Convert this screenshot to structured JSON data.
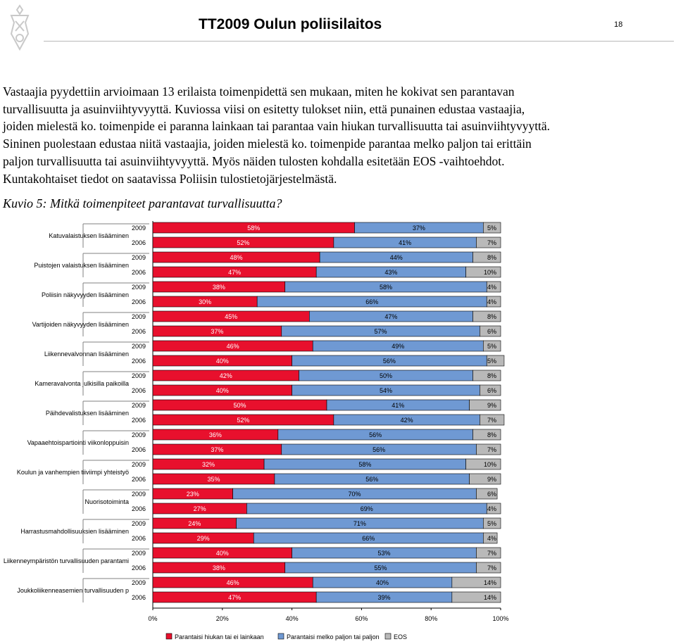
{
  "header": {
    "title": "TT2009 Oulun poliisilaitos",
    "page_number": "18"
  },
  "intro": {
    "lines": [
      "Vastaajia pyydettiin arvioimaan 13 erilaista toimenpidettä sen mukaan, miten he kokivat sen parantavan",
      "turvallisuutta ja asuinviihtyvyyttä. Kuviossa viisi on esitetty tulokset niin, että punainen edustaa vastaajia,",
      "joiden mielestä ko. toimenpide ei paranna lainkaan tai parantaa vain hiukan turvallisuutta tai asuinviihtyvyyttä.",
      "Sininen puolestaan edustaa niitä vastaajia, joiden mielestä ko. toimenpide parantaa melko paljon tai erittäin",
      "paljon turvallisuutta tai asuinviihtyvyyttä. Myös näiden tulosten kohdalla esitetään EOS -vaihtoehdot.",
      "Kuntakohtaiset tiedot on saatavissa Poliisin tulostietojärjestelmästä."
    ]
  },
  "figure_caption": "Kuvio 5: Mitkä toimenpiteet parantavat turvallisuutta?",
  "colors": {
    "red": "#e8102d",
    "blue": "#6f99d3",
    "gray": "#b9b9b9"
  },
  "chart_data": {
    "type": "bar",
    "orientation": "horizontal",
    "stacked": true,
    "xlim": [
      0,
      100
    ],
    "x_ticks": [
      "0%",
      "20%",
      "40%",
      "60%",
      "80%",
      "100%"
    ],
    "legend": [
      "Parantaisi hiukan tai ei lainkaan",
      "Parantaisi melko paljon tai paljon",
      "EOS"
    ],
    "items": [
      {
        "label": "Katuvalaistuksen lisääminen",
        "rows": [
          {
            "year": "2009",
            "values": [
              58,
              37,
              5
            ]
          },
          {
            "year": "2006",
            "values": [
              52,
              41,
              7
            ]
          }
        ]
      },
      {
        "label": "Puistojen valaistuksen lisääminen",
        "rows": [
          {
            "year": "2009",
            "values": [
              48,
              44,
              8
            ]
          },
          {
            "year": "2006",
            "values": [
              47,
              43,
              10
            ]
          }
        ]
      },
      {
        "label": "Poliisin näkyvyyden lisääminen",
        "rows": [
          {
            "year": "2009",
            "values": [
              38,
              58,
              4
            ]
          },
          {
            "year": "2006",
            "values": [
              30,
              66,
              4
            ]
          }
        ]
      },
      {
        "label": "Vartijoiden näkyvyyden lisääminen",
        "rows": [
          {
            "year": "2009",
            "values": [
              45,
              47,
              8
            ]
          },
          {
            "year": "2006",
            "values": [
              37,
              57,
              6
            ]
          }
        ]
      },
      {
        "label": "Liikennevalvonnan lisääminen",
        "rows": [
          {
            "year": "2009",
            "values": [
              46,
              49,
              5
            ]
          },
          {
            "year": "2006",
            "values": [
              40,
              56,
              5
            ]
          }
        ]
      },
      {
        "label": "Kameravalvonta julkisilla paikoilla",
        "rows": [
          {
            "year": "2009",
            "values": [
              42,
              50,
              8
            ]
          },
          {
            "year": "2006",
            "values": [
              40,
              54,
              6
            ]
          }
        ]
      },
      {
        "label": "Päihdevalistuksen lisääminen",
        "rows": [
          {
            "year": "2009",
            "values": [
              50,
              41,
              9
            ]
          },
          {
            "year": "2006",
            "values": [
              52,
              42,
              7
            ]
          }
        ]
      },
      {
        "label": "Vapaaehtoispartiointi viikonloppuisin",
        "rows": [
          {
            "year": "2009",
            "values": [
              36,
              56,
              8
            ]
          },
          {
            "year": "2006",
            "values": [
              37,
              56,
              7
            ]
          }
        ]
      },
      {
        "label": "Koulun ja vanhempien tiiviimpi yhteistyö",
        "rows": [
          {
            "year": "2009",
            "values": [
              32,
              58,
              10
            ]
          },
          {
            "year": "2006",
            "values": [
              35,
              56,
              9
            ]
          }
        ]
      },
      {
        "label": "Nuorisotoiminta",
        "rows": [
          {
            "year": "2009",
            "values": [
              23,
              70,
              6
            ]
          },
          {
            "year": "2006",
            "values": [
              27,
              69,
              4
            ]
          }
        ]
      },
      {
        "label": "Harrastusmahdollisuuksien lisääminen",
        "rows": [
          {
            "year": "2009",
            "values": [
              24,
              71,
              5
            ]
          },
          {
            "year": "2006",
            "values": [
              29,
              66,
              4
            ]
          }
        ]
      },
      {
        "label": "Liikenneympäristön turvallisuuden parantami",
        "rows": [
          {
            "year": "2009",
            "values": [
              40,
              53,
              7
            ]
          },
          {
            "year": "2006",
            "values": [
              38,
              55,
              7
            ]
          }
        ]
      },
      {
        "label": "Joukkoliikenneasemien turvallisuuden p",
        "rows": [
          {
            "year": "2009",
            "values": [
              46,
              40,
              14
            ]
          },
          {
            "year": "2006",
            "values": [
              47,
              39,
              14
            ]
          }
        ]
      }
    ]
  }
}
